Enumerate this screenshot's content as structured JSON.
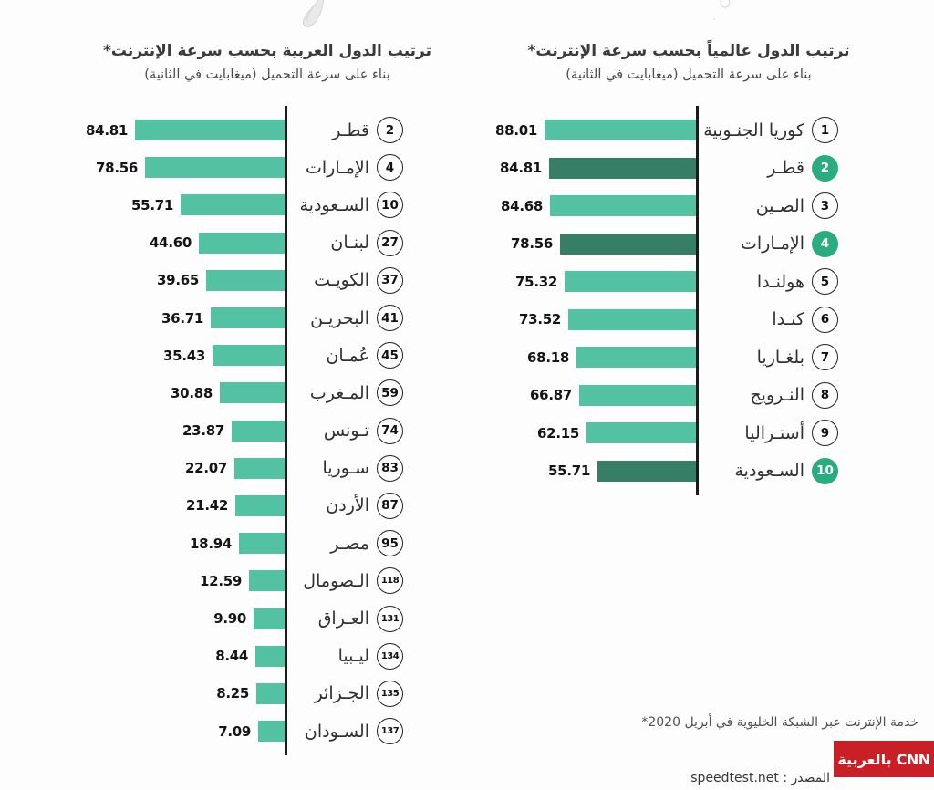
{
  "page": {
    "background": "#fdfdfd"
  },
  "colors": {
    "bar": "#53c2a2",
    "bar_highlight": "#377e67",
    "badge_fill": "#2bac80",
    "axis": "#1b1b1b",
    "logo_red": "#c92027"
  },
  "icons": {
    "top_left": "sketch-map",
    "top_right": "sketch-globe"
  },
  "chart_data": [
    {
      "type": "bar",
      "orientation": "horizontal-rtl",
      "title": "ترتيب الدول العربية بحسب سرعة الإنترنت*",
      "subtitle": "بناء على سرعة التحميل (ميغابايت في الثانية)",
      "xlim": [
        0,
        88
      ],
      "grid": false,
      "legend": "none",
      "rows": [
        {
          "rank": 2,
          "country": "قطـر",
          "value": 84.81,
          "highlight": false
        },
        {
          "rank": 4,
          "country": "الإمـارات",
          "value": 78.56,
          "highlight": false
        },
        {
          "rank": 10,
          "country": "السـعودية",
          "value": 55.71,
          "highlight": false
        },
        {
          "rank": 27,
          "country": "لبنـان",
          "value": 44.6,
          "highlight": false
        },
        {
          "rank": 37,
          "country": "الكويـت",
          "value": 39.65,
          "highlight": false
        },
        {
          "rank": 41,
          "country": "البحريـن",
          "value": 36.71,
          "highlight": false
        },
        {
          "rank": 45,
          "country": "عُمـان",
          "value": 35.43,
          "highlight": false
        },
        {
          "rank": 59,
          "country": "المـغرب",
          "value": 30.88,
          "highlight": false
        },
        {
          "rank": 74,
          "country": "تـونس",
          "value": 23.87,
          "highlight": false
        },
        {
          "rank": 83,
          "country": "سـوريا",
          "value": 22.07,
          "highlight": false
        },
        {
          "rank": 87,
          "country": "الأردن",
          "value": 21.42,
          "highlight": false
        },
        {
          "rank": 95,
          "country": "مصـر",
          "value": 18.94,
          "highlight": false
        },
        {
          "rank": 118,
          "country": "الـصومال",
          "value": 12.59,
          "highlight": false
        },
        {
          "rank": 131,
          "country": "العـراق",
          "value": 9.9,
          "highlight": false
        },
        {
          "rank": 134,
          "country": "ليـبيا",
          "value": 8.44,
          "highlight": false
        },
        {
          "rank": 135,
          "country": "الجـزائر",
          "value": 8.25,
          "highlight": false
        },
        {
          "rank": 137,
          "country": "السـودان",
          "value": 7.09,
          "highlight": false
        }
      ]
    },
    {
      "type": "bar",
      "orientation": "horizontal-rtl",
      "title": "ترتيب الدول عالمياً بحسب سرعة الإنترنت*",
      "subtitle": "بناء على سرعة التحميل (ميغابايت في الثانية)",
      "xlim": [
        0,
        88
      ],
      "grid": false,
      "legend": "none",
      "rows": [
        {
          "rank": 1,
          "country": "كوريا الجنـوبية",
          "value": 88.01,
          "highlight": false
        },
        {
          "rank": 2,
          "country": "قطـر",
          "value": 84.81,
          "highlight": true
        },
        {
          "rank": 3,
          "country": "الصـين",
          "value": 84.68,
          "highlight": false
        },
        {
          "rank": 4,
          "country": "الإمـارات",
          "value": 78.56,
          "highlight": true
        },
        {
          "rank": 5,
          "country": "هولنـدا",
          "value": 75.32,
          "highlight": false
        },
        {
          "rank": 6,
          "country": "كنـدا",
          "value": 73.52,
          "highlight": false
        },
        {
          "rank": 7,
          "country": "بلغـاريا",
          "value": 68.18,
          "highlight": false
        },
        {
          "rank": 8,
          "country": "النـرويج",
          "value": 66.87,
          "highlight": false
        },
        {
          "rank": 9,
          "country": "أستـراليا",
          "value": 62.15,
          "highlight": false
        },
        {
          "rank": 10,
          "country": "السـعودية",
          "value": 55.71,
          "highlight": true
        }
      ]
    }
  ],
  "footer": {
    "footnote": "خدمة الإنترنت عبر الشبكة الخليوية في أبريل 2020*",
    "source_label": "المصدر :",
    "source_value": "speedtest.net",
    "logo_text": "CNN بالعربية"
  }
}
